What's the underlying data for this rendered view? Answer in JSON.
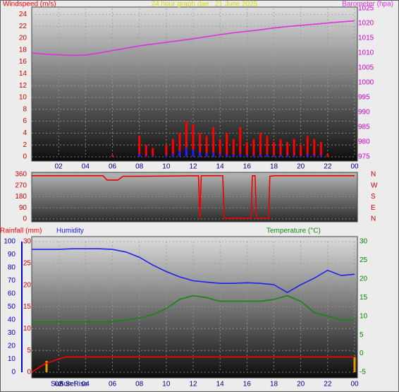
{
  "chart_data": [
    {
      "type": "bar",
      "title": "24 hour graph dae : 21 June 2025",
      "title_color": "#d8d800",
      "xlim": [
        0,
        24
      ],
      "xticks": [
        {
          "value": 2,
          "label": "02"
        },
        {
          "value": 4,
          "label": "04"
        },
        {
          "value": 6,
          "label": "06"
        },
        {
          "value": 8,
          "label": "08"
        },
        10,
        12,
        14,
        16,
        18,
        20,
        22,
        {
          "value": 24,
          "label": "00"
        }
      ],
      "ylim": [
        0,
        25
      ],
      "yticks": [
        0,
        2,
        4,
        6,
        8,
        10,
        12,
        14,
        16,
        18,
        20,
        22,
        24
      ],
      "y2lim": [
        975,
        1025
      ],
      "y2ticks": [
        975,
        980,
        985,
        990,
        995,
        1000,
        1005,
        1010,
        1015,
        1020,
        1025
      ],
      "axis_colors": {
        "y": "#cc0000",
        "y2": "#cc00cc"
      },
      "grid": true,
      "series": [
        {
          "name": "Windspeed (m/s)",
          "kind": "bar",
          "color": "#ff0000",
          "x": [
            0,
            0.5,
            1,
            1.5,
            2,
            2.5,
            3,
            3.5,
            4,
            4.5,
            5,
            5.5,
            6,
            6.5,
            7,
            7.5,
            8,
            8.5,
            9,
            9.5,
            10,
            10.5,
            11,
            11.5,
            12,
            12.5,
            13,
            13.5,
            14,
            14.5,
            15,
            15.5,
            16,
            16.5,
            17,
            17.5,
            18,
            18.5,
            19,
            19.5,
            20,
            20.5,
            21,
            21.5,
            22,
            22.5,
            23,
            23.5,
            24
          ],
          "values": [
            0,
            0,
            0,
            0,
            0,
            0,
            0,
            0,
            0,
            0,
            0,
            0,
            0.3,
            0,
            0,
            0,
            3.5,
            2,
            1.5,
            0,
            2,
            3,
            4,
            6,
            5.5,
            4,
            3.5,
            5,
            3,
            4,
            3,
            5,
            2.5,
            3,
            4,
            3.5,
            2.5,
            3,
            2.5,
            3,
            2,
            3.5,
            3,
            2.5,
            0.5,
            0,
            0,
            0,
            0
          ]
        },
        {
          "kind": "bar",
          "color": "#2020ff",
          "x": [
            0,
            0.5,
            1,
            1.5,
            2,
            2.5,
            3,
            3.5,
            4,
            4.5,
            5,
            5.5,
            6,
            6.5,
            7,
            7.5,
            8,
            8.5,
            9,
            9.5,
            10,
            10.5,
            11,
            11.5,
            12,
            12.5,
            13,
            13.5,
            14,
            14.5,
            15,
            15.5,
            16,
            16.5,
            17,
            17.5,
            18,
            18.5,
            19,
            19.5,
            20,
            20.5,
            21,
            21.5,
            22,
            22.5,
            23,
            23.5,
            24
          ],
          "values": [
            0,
            0,
            0,
            0,
            0,
            0,
            0,
            0,
            0,
            0,
            0,
            0,
            0,
            0,
            0,
            0,
            0.5,
            0.2,
            0.2,
            0,
            0.3,
            0.5,
            1,
            1.5,
            1.2,
            0.8,
            0.6,
            0.7,
            0.5,
            0.4,
            0.4,
            0.5,
            0.3,
            0.3,
            0.4,
            0.4,
            0.3,
            0.3,
            0.3,
            0.3,
            0.2,
            0.4,
            0.3,
            0.3,
            0,
            0,
            0,
            0,
            0
          ]
        },
        {
          "name": "Barometer (hpa)",
          "kind": "line",
          "axis": "y2",
          "color": "#dd33dd",
          "x": [
            0,
            1,
            2,
            3,
            4,
            5,
            6,
            7,
            8,
            9,
            10,
            11,
            12,
            13,
            14,
            15,
            16,
            17,
            18,
            19,
            20,
            21,
            22,
            23,
            24
          ],
          "values": [
            1010,
            1009.6,
            1009.4,
            1009.2,
            1009.3,
            1010,
            1010.8,
            1011.6,
            1012.4,
            1013,
            1013.6,
            1014.2,
            1014.8,
            1015.5,
            1016.2,
            1016.8,
            1017.3,
            1017.8,
            1018.4,
            1018.9,
            1019.3,
            1019.7,
            1020.1,
            1020.5,
            1020.8
          ]
        }
      ]
    },
    {
      "type": "line",
      "xlim": [
        0,
        24
      ],
      "ylim": [
        0,
        360
      ],
      "yticks": [
        0,
        90,
        180,
        270,
        360
      ],
      "y2lim": [
        0,
        360
      ],
      "y2ticks": [
        {
          "value": 0,
          "label": "N"
        },
        {
          "value": 90,
          "label": "E"
        },
        {
          "value": 180,
          "label": "S"
        },
        {
          "value": 270,
          "label": "W"
        },
        {
          "value": 360,
          "label": "N"
        }
      ],
      "axis_colors": {
        "y": "#cc0000",
        "y2": "#cc0000"
      },
      "grid": true,
      "series": [
        {
          "kind": "line",
          "color": "#ee0000",
          "x": [
            0,
            5.3,
            5.6,
            6.4,
            6.8,
            8,
            12.4,
            12.5,
            12.6,
            12.8,
            14.2,
            14.3,
            16.3,
            16.4,
            16.6,
            16.7,
            17.6,
            17.7,
            18,
            24
          ],
          "values": [
            350,
            350,
            315,
            315,
            345,
            345,
            350,
            0,
            350,
            350,
            350,
            5,
            5,
            350,
            350,
            5,
            5,
            345,
            350,
            350
          ]
        }
      ]
    },
    {
      "type": "line",
      "xlim": [
        0,
        24
      ],
      "xticks": [
        {
          "value": 2,
          "label": "02"
        },
        {
          "value": 4,
          "label": "04"
        },
        {
          "value": 6,
          "label": "06"
        },
        {
          "value": 8,
          "label": "08"
        },
        10,
        12,
        14,
        16,
        18,
        20,
        22,
        {
          "value": 24,
          "label": "00"
        }
      ],
      "ylim": [
        0,
        100
      ],
      "yticks": [
        0,
        10,
        20,
        30,
        40,
        50,
        60,
        70,
        80,
        90,
        100
      ],
      "y3lim": [
        0,
        30
      ],
      "y3ticks": [
        0,
        5,
        10,
        15,
        20,
        25,
        30
      ],
      "y2lim": [
        -5,
        30
      ],
      "y2ticks": [
        -5,
        0,
        5,
        10,
        15,
        20,
        25,
        30
      ],
      "axis_colors": {
        "y": "#0000cc",
        "y2": "#008800",
        "y3": "#cc0000"
      },
      "grid": true,
      "annotations": [
        "Sun Set",
        "Sun Rise"
      ],
      "series": [
        {
          "name": "Rainfall (mm)",
          "kind": "line",
          "axis": "y3",
          "color": "#ff0000",
          "x": [
            0,
            0.5,
            1,
            1.5,
            2,
            2.5,
            3,
            24
          ],
          "values": [
            0,
            1,
            2,
            2.5,
            3,
            3.5,
            3.5,
            3.5
          ]
        },
        {
          "kind": "bar",
          "axis": "y3",
          "color": "#e0a000",
          "x": [
            1.1,
            24
          ],
          "values": [
            2.6,
            3.5
          ]
        },
        {
          "name": "Humidity",
          "kind": "line",
          "color": "#2020ee",
          "x": [
            0,
            1,
            2,
            3,
            4,
            5,
            6,
            7,
            8,
            9,
            10,
            11,
            12,
            13,
            14,
            15,
            16,
            17,
            18,
            19,
            20,
            21,
            22,
            23,
            24
          ],
          "values": [
            94,
            94,
            94,
            94.5,
            94.5,
            94.5,
            94,
            92,
            88,
            82,
            77,
            73,
            70,
            69,
            68,
            68,
            68.5,
            68,
            67,
            61,
            67,
            72,
            78,
            74,
            75
          ]
        },
        {
          "name": "Temperature (°C)",
          "kind": "line",
          "axis": "y2",
          "color": "#118811",
          "x": [
            0,
            1,
            2,
            3,
            4,
            5,
            6,
            7,
            8,
            9,
            10,
            11,
            12,
            13,
            14,
            15,
            16,
            17,
            18,
            19,
            20,
            21,
            22,
            23,
            24
          ],
          "values": [
            8.5,
            8.5,
            8.5,
            8.5,
            8.5,
            8.5,
            8.5,
            9,
            9.5,
            10.5,
            12,
            14.5,
            15.5,
            15,
            14,
            14,
            14,
            14,
            14.5,
            15.5,
            14,
            11,
            10,
            9,
            9
          ]
        }
      ]
    }
  ]
}
